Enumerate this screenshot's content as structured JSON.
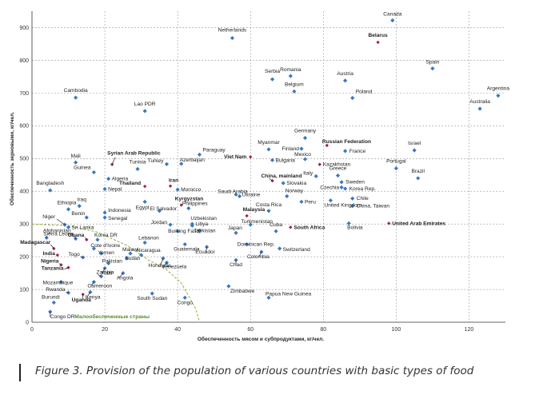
{
  "caption": "Figure 3. Provision of the population of various countries with basic types of food",
  "colors": {
    "regular": "#3a78c0",
    "highlight": "#a8204a",
    "low_income": "#8fae3a"
  },
  "chart_data": {
    "type": "scatter",
    "title": "",
    "xlabel": "Обеспеченность мясом и субпродуктами, кг/чел.",
    "ylabel": "Обеспеченность зерновыми, кг/чел.",
    "xlim": [
      0,
      130
    ],
    "ylim": [
      0,
      950
    ],
    "xticks": [
      "0",
      "20",
      "40",
      "60",
      "80",
      "100",
      "120"
    ],
    "yticks": [
      "0",
      "100",
      "200",
      "300",
      "400",
      "500",
      "600",
      "700",
      "800",
      "900"
    ],
    "grid": true,
    "annotation": "Малообеспеченные страны",
    "points": [
      {
        "name": "Canada",
        "x": 99,
        "y": 922
      },
      {
        "name": "Belarus",
        "x": 95,
        "y": 855,
        "bold": true,
        "highlight": true
      },
      {
        "name": "Netherlands",
        "x": 55,
        "y": 868
      },
      {
        "name": "Spain",
        "x": 110,
        "y": 775
      },
      {
        "name": "Serbia",
        "x": 66,
        "y": 742
      },
      {
        "name": "Romania",
        "x": 71,
        "y": 752
      },
      {
        "name": "Austria",
        "x": 86,
        "y": 738
      },
      {
        "name": "Belgium",
        "x": 72,
        "y": 705
      },
      {
        "name": "Poland",
        "x": 88,
        "y": 685
      },
      {
        "name": "Argentina",
        "x": 128,
        "y": 692
      },
      {
        "name": "Australia",
        "x": 123,
        "y": 652
      },
      {
        "name": "Cambodia",
        "x": 12,
        "y": 686
      },
      {
        "name": "Lao PDR",
        "x": 31,
        "y": 645
      },
      {
        "name": "Germany",
        "x": 75,
        "y": 563
      },
      {
        "name": "Russian Federation",
        "x": 81,
        "y": 540,
        "bold": true,
        "highlight": true
      },
      {
        "name": "Finland",
        "x": 74,
        "y": 530
      },
      {
        "name": "Israel",
        "x": 105,
        "y": 525
      },
      {
        "name": "Myanmar",
        "x": 65,
        "y": 528
      },
      {
        "name": "France",
        "x": 86,
        "y": 523
      },
      {
        "name": "Viet Nam",
        "x": 60,
        "y": 505,
        "bold": true,
        "highlight": true
      },
      {
        "name": "Paraguay",
        "x": 46,
        "y": 512
      },
      {
        "name": "Bulgaria",
        "x": 66,
        "y": 495
      },
      {
        "name": "Mexico",
        "x": 75,
        "y": 498
      },
      {
        "name": "Portugal",
        "x": 100,
        "y": 470
      },
      {
        "name": "Mali",
        "x": 12,
        "y": 488
      },
      {
        "name": "Syrian Arab Republic",
        "x": 22,
        "y": 482,
        "bold": true,
        "highlight": true
      },
      {
        "name": "Turkey",
        "x": 37,
        "y": 483
      },
      {
        "name": "Azerbaijan",
        "x": 41,
        "y": 484
      },
      {
        "name": "Kazakhstan",
        "x": 79,
        "y": 482,
        "highlight": true
      },
      {
        "name": "Tunisia",
        "x": 29,
        "y": 468
      },
      {
        "name": "Guinea",
        "x": 17,
        "y": 458
      },
      {
        "name": "Algeria",
        "x": 21,
        "y": 438
      },
      {
        "name": "Greece",
        "x": 84,
        "y": 448
      },
      {
        "name": "Italy",
        "x": 78,
        "y": 446
      },
      {
        "name": "Brazil",
        "x": 106,
        "y": 440
      },
      {
        "name": "China, mainland",
        "x": 66,
        "y": 432,
        "bold": true,
        "highlight": true
      },
      {
        "name": "Sweden",
        "x": 85,
        "y": 428
      },
      {
        "name": "Slovakia",
        "x": 69,
        "y": 425
      },
      {
        "name": "Thailand",
        "x": 31,
        "y": 415,
        "bold": true,
        "highlight": true
      },
      {
        "name": "Iran",
        "x": 38,
        "y": 416,
        "bold": true,
        "highlight": true
      },
      {
        "name": "Czechia",
        "x": 85,
        "y": 412
      },
      {
        "name": "Korea Rep.",
        "x": 86,
        "y": 408
      },
      {
        "name": "Bangladesh",
        "x": 5,
        "y": 403
      },
      {
        "name": "Nepal",
        "x": 20,
        "y": 407
      },
      {
        "name": "Morocco",
        "x": 40,
        "y": 405
      },
      {
        "name": "Saudi Arabia",
        "x": 56,
        "y": 390
      },
      {
        "name": "Ukraine",
        "x": 57,
        "y": 385
      },
      {
        "name": "Norway",
        "x": 70,
        "y": 385
      },
      {
        "name": "Peru",
        "x": 74,
        "y": 368
      },
      {
        "name": "United Kingdom",
        "x": 82,
        "y": 372
      },
      {
        "name": "Chile",
        "x": 88,
        "y": 378
      },
      {
        "name": "China, Taiwan",
        "x": 88,
        "y": 355
      },
      {
        "name": "Ethiopia",
        "x": 10,
        "y": 345
      },
      {
        "name": "Iraq",
        "x": 13,
        "y": 355
      },
      {
        "name": "Egypt",
        "x": 31,
        "y": 368
      },
      {
        "name": "Kyrgyzstan",
        "x": 41,
        "y": 358,
        "bold": true,
        "highlight": true
      },
      {
        "name": "Philippines",
        "x": 43,
        "y": 348
      },
      {
        "name": "El Salvador",
        "x": 35,
        "y": 340
      },
      {
        "name": "Indonesia",
        "x": 20,
        "y": 335
      },
      {
        "name": "Senegal",
        "x": 20,
        "y": 320
      },
      {
        "name": "Benin",
        "x": 15,
        "y": 320
      },
      {
        "name": "Malaysia",
        "x": 59,
        "y": 325,
        "bold": true,
        "highlight": true
      },
      {
        "name": "Costa Rica",
        "x": 65,
        "y": 340
      },
      {
        "name": "Niger",
        "x": 9,
        "y": 298
      },
      {
        "name": "Sri Lanka",
        "x": 10,
        "y": 290
      },
      {
        "name": "Jordan",
        "x": 38,
        "y": 298
      },
      {
        "name": "Libya",
        "x": 44,
        "y": 300
      },
      {
        "name": "Uzbekistan",
        "x": 44,
        "y": 295
      },
      {
        "name": "Tajikistan",
        "x": 46,
        "y": 280
      },
      {
        "name": "Turkmenistan",
        "x": 60,
        "y": 298
      },
      {
        "name": "United Arab Emirates",
        "x": 98,
        "y": 302,
        "bold": true,
        "highlight": true
      },
      {
        "name": "Bolivia",
        "x": 87,
        "y": 302
      },
      {
        "name": "South Africa",
        "x": 71,
        "y": 290,
        "bold": true,
        "highlight": true
      },
      {
        "name": "Cuba",
        "x": 67,
        "y": 278
      },
      {
        "name": "Burking Faso",
        "x": 40,
        "y": 278
      },
      {
        "name": "Japan",
        "x": 56,
        "y": 273
      },
      {
        "name": "Sierra Leone",
        "x": 4,
        "y": 258
      },
      {
        "name": "Afghanistan",
        "x": 12,
        "y": 255
      },
      {
        "name": "Ghana",
        "x": 15,
        "y": 252,
        "bold": true,
        "highlight": true
      },
      {
        "name": "Korea DR",
        "x": 18,
        "y": 252
      },
      {
        "name": "Lebanon",
        "x": 31,
        "y": 243
      },
      {
        "name": "Dominican Rep.",
        "x": 59,
        "y": 238
      },
      {
        "name": "Guatemala",
        "x": 42,
        "y": 238
      },
      {
        "name": "Madagascar",
        "x": 6,
        "y": 225,
        "bold": true,
        "highlight": true
      },
      {
        "name": "Cote d'Ivoire",
        "x": 17,
        "y": 225
      },
      {
        "name": "Switzerland",
        "x": 68,
        "y": 225
      },
      {
        "name": "Ecuador",
        "x": 48,
        "y": 230
      },
      {
        "name": "Colombia",
        "x": 63,
        "y": 215
      },
      {
        "name": "Malawi",
        "x": 27,
        "y": 210
      },
      {
        "name": "Nicaragua",
        "x": 30,
        "y": 205
      },
      {
        "name": "Yemen",
        "x": 19,
        "y": 210
      },
      {
        "name": "India",
        "x": 7,
        "y": 205,
        "bold": true,
        "highlight": true
      },
      {
        "name": "Togo",
        "x": 14,
        "y": 198
      },
      {
        "name": "Sudan",
        "x": 26,
        "y": 195
      },
      {
        "name": "Pakistan",
        "x": 21,
        "y": 180
      },
      {
        "name": "Nigeria",
        "x": 8,
        "y": 175,
        "bold": true,
        "highlight": true
      },
      {
        "name": "Honduras",
        "x": 36,
        "y": 195
      },
      {
        "name": "Venezuela",
        "x": 37,
        "y": 182
      },
      {
        "name": "Chad",
        "x": 56,
        "y": 190
      },
      {
        "name": "Tanzania",
        "x": 10,
        "y": 167,
        "bold": true,
        "highlight": true
      },
      {
        "name": "Haiti",
        "x": 20,
        "y": 165
      },
      {
        "name": "Angola",
        "x": 25,
        "y": 150
      },
      {
        "name": "Zambia",
        "x": 19,
        "y": 140
      },
      {
        "name": "Mozambique",
        "x": 8,
        "y": 123
      },
      {
        "name": "Cameroon",
        "x": 17,
        "y": 123
      },
      {
        "name": "Zimbabwe",
        "x": 54,
        "y": 110
      },
      {
        "name": "Rwanda",
        "x": 10,
        "y": 90
      },
      {
        "name": "Kenya",
        "x": 16,
        "y": 92
      },
      {
        "name": "Uganda",
        "x": 14,
        "y": 85,
        "bold": true,
        "highlight": true
      },
      {
        "name": "South Sudan",
        "x": 33,
        "y": 88
      },
      {
        "name": "Congo",
        "x": 42,
        "y": 75
      },
      {
        "name": "Papua New Guinea",
        "x": 65,
        "y": 75
      },
      {
        "name": "Burundi",
        "x": 6,
        "y": 60
      },
      {
        "name": "Congo DR",
        "x": 5,
        "y": 32
      }
    ]
  }
}
